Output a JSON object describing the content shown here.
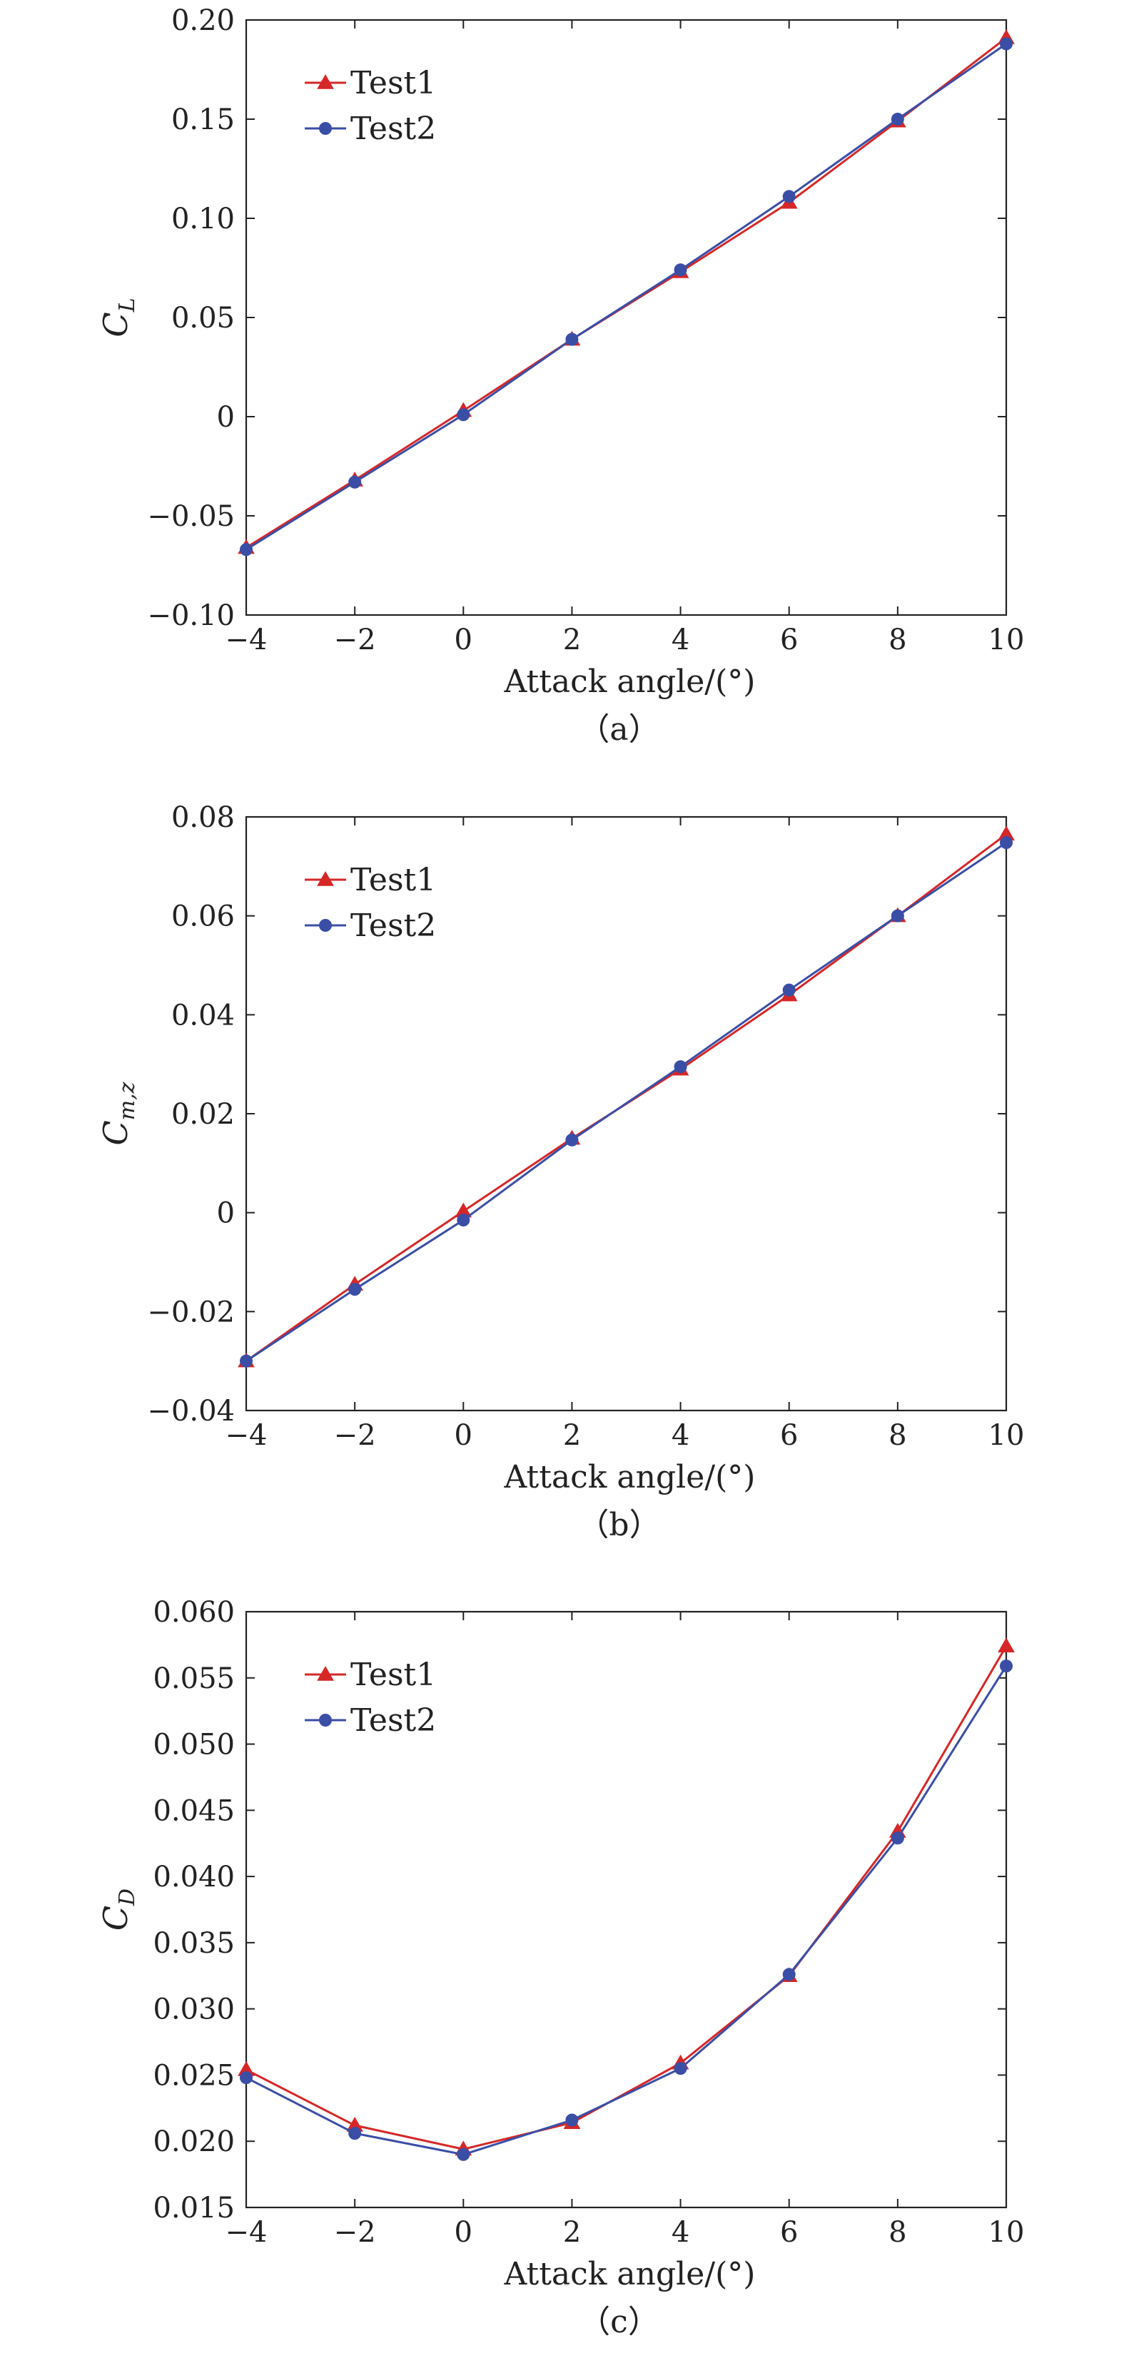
{
  "chart_data": [
    {
      "type": "line",
      "caption": "（a）",
      "xlabel": "Attack angle/(°)",
      "ylabel_main": "C",
      "ylabel_sub": "L",
      "x": [
        -4,
        -2,
        0,
        2,
        4,
        6,
        8,
        10
      ],
      "xlim": [
        -4,
        10
      ],
      "ylim": [
        -0.1,
        0.2
      ],
      "xticks": [
        "−4",
        "−2",
        "0",
        "2",
        "4",
        "6",
        "8",
        "10"
      ],
      "xtick_values": [
        -4,
        -2,
        0,
        2,
        4,
        6,
        8,
        10
      ],
      "yticks": [
        "−0.10",
        "−0.05",
        "0",
        "0.05",
        "0.10",
        "0.15",
        "0.20"
      ],
      "ytick_values": [
        -0.1,
        -0.05,
        0,
        0.05,
        0.1,
        0.15,
        0.2
      ],
      "legend": "top-left",
      "grid": false,
      "series": [
        {
          "name": "Test1",
          "color": "#d62728",
          "marker": "triangle",
          "values": [
            -0.066,
            -0.032,
            0.003,
            0.039,
            0.073,
            0.108,
            0.149,
            0.191
          ]
        },
        {
          "name": "Test2",
          "color": "#3a4ea6",
          "marker": "circle",
          "values": [
            -0.067,
            -0.033,
            0.001,
            0.039,
            0.074,
            0.111,
            0.15,
            0.188
          ]
        }
      ]
    },
    {
      "type": "line",
      "caption": "（b）",
      "xlabel": "Attack angle/(°)",
      "ylabel_main": "C",
      "ylabel_sub": "m,z",
      "x": [
        -4,
        -2,
        0,
        2,
        4,
        6,
        8,
        10
      ],
      "xlim": [
        -4,
        10
      ],
      "ylim": [
        -0.04,
        0.08
      ],
      "xticks": [
        "−4",
        "−2",
        "0",
        "2",
        "4",
        "6",
        "8",
        "10"
      ],
      "xtick_values": [
        -4,
        -2,
        0,
        2,
        4,
        6,
        8,
        10
      ],
      "yticks": [
        "−0.04",
        "−0.02",
        "0",
        "0.02",
        "0.04",
        "0.06",
        "0.08"
      ],
      "ytick_values": [
        -0.04,
        -0.02,
        0,
        0.02,
        0.04,
        0.06,
        0.08
      ],
      "legend": "top-left",
      "grid": false,
      "series": [
        {
          "name": "Test1",
          "color": "#d62728",
          "marker": "triangle",
          "values": [
            -0.03,
            -0.0145,
            0.0003,
            0.015,
            0.029,
            0.044,
            0.06,
            0.0765
          ]
        },
        {
          "name": "Test2",
          "color": "#3a4ea6",
          "marker": "circle",
          "values": [
            -0.03,
            -0.0155,
            -0.0015,
            0.0147,
            0.0295,
            0.045,
            0.06,
            0.0748
          ]
        }
      ]
    },
    {
      "type": "line",
      "caption": "（c）",
      "xlabel": "Attack angle/(°)",
      "ylabel_main": "C",
      "ylabel_sub": "D",
      "x": [
        -4,
        -2,
        0,
        2,
        4,
        6,
        8,
        10
      ],
      "xlim": [
        -4,
        10
      ],
      "ylim": [
        0.015,
        0.06
      ],
      "xticks": [
        "−4",
        "−2",
        "0",
        "2",
        "4",
        "6",
        "8",
        "10"
      ],
      "xtick_values": [
        -4,
        -2,
        0,
        2,
        4,
        6,
        8,
        10
      ],
      "yticks": [
        "0.015",
        "0.020",
        "0.025",
        "0.030",
        "0.035",
        "0.040",
        "0.045",
        "0.050",
        "0.055",
        "0.060"
      ],
      "ytick_values": [
        0.015,
        0.02,
        0.025,
        0.03,
        0.035,
        0.04,
        0.045,
        0.05,
        0.055,
        0.06
      ],
      "legend": "top-left",
      "grid": false,
      "series": [
        {
          "name": "Test1",
          "color": "#d62728",
          "marker": "triangle",
          "values": [
            0.0254,
            0.0212,
            0.0194,
            0.0214,
            0.0259,
            0.0325,
            0.0434,
            0.0574
          ]
        },
        {
          "name": "Test2",
          "color": "#3a4ea6",
          "marker": "circle",
          "values": [
            0.0248,
            0.0206,
            0.019,
            0.0216,
            0.0255,
            0.0326,
            0.0429,
            0.0559
          ]
        }
      ]
    }
  ]
}
